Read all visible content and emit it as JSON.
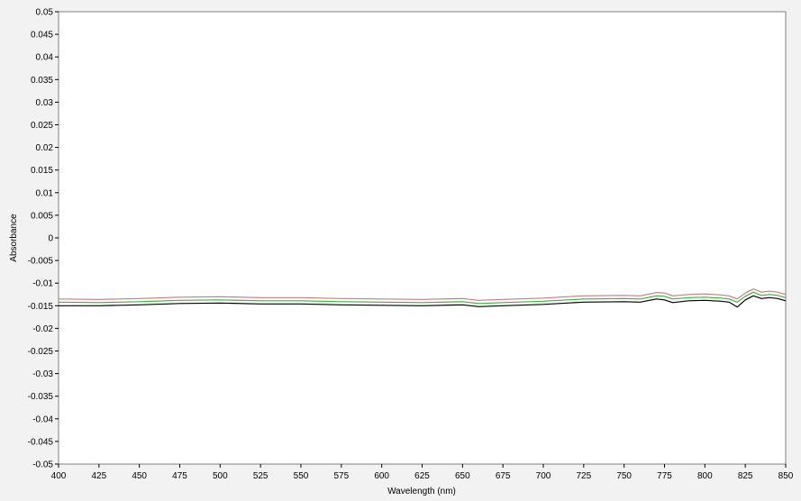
{
  "chart_data": {
    "type": "line",
    "xlabel": "Wavelength (nm)",
    "ylabel": "Absorbance",
    "xlim": [
      400,
      850
    ],
    "ylim": [
      -0.05,
      0.05
    ],
    "x_ticks": [
      400,
      425,
      450,
      475,
      500,
      525,
      550,
      575,
      600,
      625,
      650,
      675,
      700,
      725,
      750,
      775,
      800,
      825,
      850
    ],
    "y_ticks": [
      0.05,
      0.045,
      0.04,
      0.035,
      0.03,
      0.025,
      0.02,
      0.015,
      0.01,
      0.005,
      0,
      -0.005,
      -0.01,
      -0.015,
      -0.02,
      -0.025,
      -0.03,
      -0.035,
      -0.04,
      -0.045,
      -0.05
    ],
    "x_tick_labels": [
      "400",
      "425",
      "450",
      "475",
      "500",
      "525",
      "550",
      "575",
      "600",
      "625",
      "650",
      "675",
      "700",
      "725",
      "750",
      "775",
      "800",
      "825",
      "850"
    ],
    "y_tick_labels": [
      "0.05",
      "0.045",
      "0.04",
      "0.035",
      "0.03",
      "0.025",
      "0.02",
      "0.015",
      "0.01",
      "0.005",
      "0",
      "-0.005",
      "-0.01",
      "-0.015",
      "-0.02",
      "-0.025",
      "-0.03",
      "-0.035",
      "-0.04",
      "-0.045",
      "-0.05"
    ],
    "grid": false,
    "legend": "none",
    "series": [
      {
        "color": "#c08080",
        "x": [
          400,
          425,
          450,
          475,
          500,
          525,
          550,
          575,
          600,
          625,
          650,
          660,
          675,
          700,
          725,
          750,
          760,
          770,
          775,
          780,
          790,
          800,
          810,
          815,
          820,
          825,
          830,
          835,
          840,
          845,
          850
        ],
        "y": [
          -0.0135,
          -0.0136,
          -0.0134,
          -0.0131,
          -0.013,
          -0.0132,
          -0.0132,
          -0.0134,
          -0.0135,
          -0.0136,
          -0.0134,
          -0.0138,
          -0.0136,
          -0.0133,
          -0.0128,
          -0.0127,
          -0.0128,
          -0.0121,
          -0.0122,
          -0.0128,
          -0.0125,
          -0.0124,
          -0.0126,
          -0.0128,
          -0.0135,
          -0.0122,
          -0.0113,
          -0.012,
          -0.0118,
          -0.012,
          -0.0125
        ]
      },
      {
        "color": "#40b040",
        "x": [
          400,
          425,
          450,
          475,
          500,
          525,
          550,
          575,
          600,
          625,
          650,
          660,
          675,
          700,
          725,
          750,
          760,
          770,
          775,
          780,
          790,
          800,
          810,
          815,
          820,
          825,
          830,
          835,
          840,
          845,
          850
        ],
        "y": [
          -0.0142,
          -0.0143,
          -0.0141,
          -0.0138,
          -0.0137,
          -0.0139,
          -0.0139,
          -0.0141,
          -0.0142,
          -0.0143,
          -0.0141,
          -0.0145,
          -0.0143,
          -0.014,
          -0.0135,
          -0.0134,
          -0.0135,
          -0.0128,
          -0.0129,
          -0.0135,
          -0.0132,
          -0.0131,
          -0.0133,
          -0.0135,
          -0.0142,
          -0.0129,
          -0.012,
          -0.0127,
          -0.0125,
          -0.0127,
          -0.0132
        ]
      },
      {
        "color": "#000000",
        "x": [
          400,
          425,
          450,
          475,
          500,
          525,
          550,
          575,
          600,
          625,
          650,
          660,
          675,
          700,
          725,
          750,
          760,
          770,
          775,
          780,
          790,
          800,
          810,
          815,
          820,
          825,
          830,
          835,
          840,
          845,
          850
        ],
        "y": [
          -0.015,
          -0.015,
          -0.0148,
          -0.0145,
          -0.0144,
          -0.0146,
          -0.0146,
          -0.0148,
          -0.0149,
          -0.015,
          -0.0148,
          -0.0152,
          -0.015,
          -0.0147,
          -0.0142,
          -0.0141,
          -0.0142,
          -0.0135,
          -0.0137,
          -0.0143,
          -0.0139,
          -0.0138,
          -0.014,
          -0.0142,
          -0.0153,
          -0.0137,
          -0.0128,
          -0.0134,
          -0.0132,
          -0.0134,
          -0.0139
        ]
      }
    ]
  }
}
